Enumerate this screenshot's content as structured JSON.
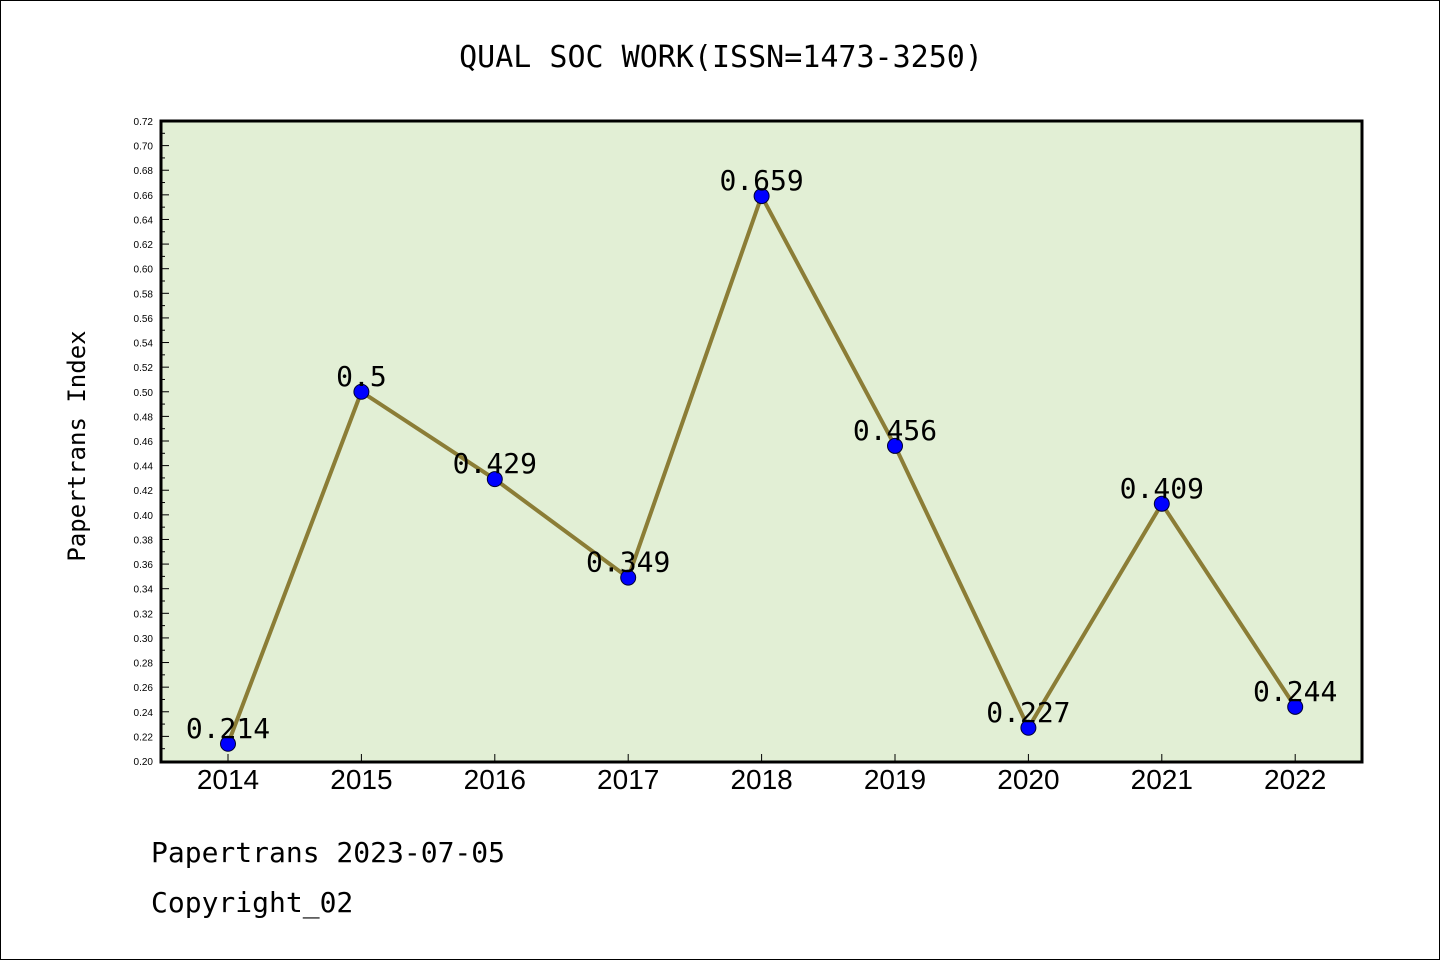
{
  "chart_data": {
    "type": "line",
    "title": "QUAL SOC WORK(ISSN=1473-3250)",
    "xlabel": "",
    "ylabel": "Papertrans Index",
    "categories": [
      "2014",
      "2015",
      "2016",
      "2017",
      "2018",
      "2019",
      "2020",
      "2021",
      "2022"
    ],
    "series": [
      {
        "values": [
          0.214,
          0.5,
          0.429,
          0.349,
          0.659,
          0.456,
          0.227,
          0.409,
          0.244
        ],
        "data_labels": [
          "0.214",
          "0.5",
          "0.429",
          "0.349",
          "0.659",
          "0.456",
          "0.227",
          "0.409",
          "0.244"
        ],
        "line_color": "#8b7d36",
        "marker_color": "#0000ff"
      }
    ],
    "ylim": [
      0.2,
      0.72
    ],
    "yticks": [
      "0.20",
      "0.22",
      "0.24",
      "0.26",
      "0.28",
      "0.30",
      "0.32",
      "0.34",
      "0.36",
      "0.38",
      "0.40",
      "0.42",
      "0.44",
      "0.46",
      "0.48",
      "0.50",
      "0.52",
      "0.54",
      "0.56",
      "0.58",
      "0.60",
      "0.62",
      "0.64",
      "0.66",
      "0.68",
      "0.70",
      "0.72"
    ],
    "grid": false,
    "legend": "none",
    "plot_background": "#e2efd5"
  },
  "footer": {
    "line1": "Papertrans 2023-07-05",
    "line2": "Copyright_02"
  }
}
